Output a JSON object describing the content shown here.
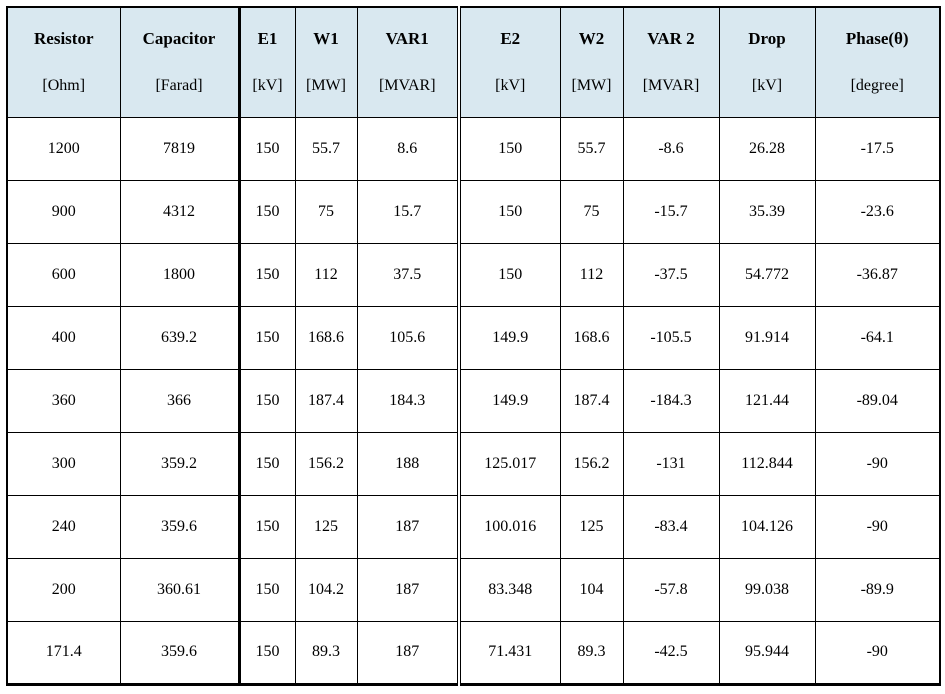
{
  "style": {
    "header_bg": "#d9e8f0",
    "border_color": "#000000"
  },
  "table": {
    "columns": [
      {
        "name": "Resistor",
        "unit": "[Ohm]"
      },
      {
        "name": "Capacitor",
        "unit": "[Farad]"
      },
      {
        "name": "E1",
        "unit": "[kV]"
      },
      {
        "name": "W1",
        "unit": "[MW]"
      },
      {
        "name": "VAR1",
        "unit": "[MVAR]"
      },
      {
        "name": "E2",
        "unit": "[kV]"
      },
      {
        "name": "W2",
        "unit": "[MW]"
      },
      {
        "name": "VAR 2",
        "unit": "[MVAR]"
      },
      {
        "name": "Drop",
        "unit": "[kV]"
      },
      {
        "name": "Phase(θ)",
        "unit": "[degree]"
      }
    ],
    "rows": [
      [
        "1200",
        "7819",
        "150",
        "55.7",
        "8.6",
        "150",
        "55.7",
        "-8.6",
        "26.28",
        "-17.5"
      ],
      [
        "900",
        "4312",
        "150",
        "75",
        "15.7",
        "150",
        "75",
        "-15.7",
        "35.39",
        "-23.6"
      ],
      [
        "600",
        "1800",
        "150",
        "112",
        "37.5",
        "150",
        "112",
        "-37.5",
        "54.772",
        "-36.87"
      ],
      [
        "400",
        "639.2",
        "150",
        "168.6",
        "105.6",
        "149.9",
        "168.6",
        "-105.5",
        "91.914",
        "-64.1"
      ],
      [
        "360",
        "366",
        "150",
        "187.4",
        "184.3",
        "149.9",
        "187.4",
        "-184.3",
        "121.44",
        "-89.04"
      ],
      [
        "300",
        "359.2",
        "150",
        "156.2",
        "188",
        "125.017",
        "156.2",
        "-131",
        "112.844",
        "-90"
      ],
      [
        "240",
        "359.6",
        "150",
        "125",
        "187",
        "100.016",
        "125",
        "-83.4",
        "104.126",
        "-90"
      ],
      [
        "200",
        "360.61",
        "150",
        "104.2",
        "187",
        "83.348",
        "104",
        "-57.8",
        "99.038",
        "-89.9"
      ],
      [
        "171.4",
        "359.6",
        "150",
        "89.3",
        "187",
        "71.431",
        "89.3",
        "-42.5",
        "95.944",
        "-90"
      ]
    ]
  }
}
